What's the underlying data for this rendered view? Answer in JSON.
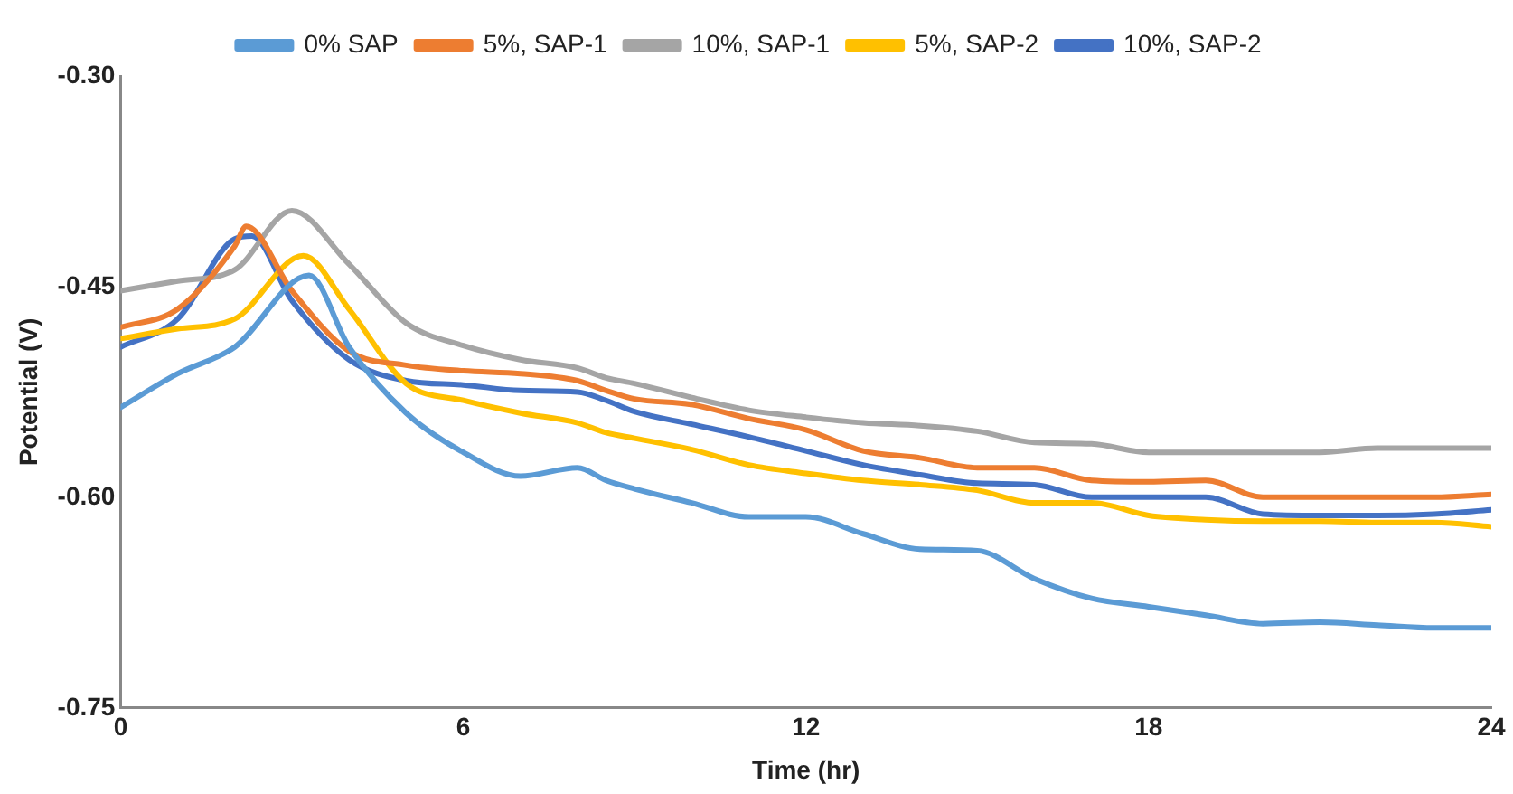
{
  "chart_data": {
    "type": "line",
    "xlabel": "Time (hr)",
    "ylabel": "Potential (V)",
    "xlim": [
      0,
      24
    ],
    "xticks": [
      0,
      6,
      12,
      18,
      24
    ],
    "ylim": [
      -0.75,
      -0.3
    ],
    "yticks": [
      {
        "value": -0.75,
        "label": "-0.75"
      },
      {
        "value": -0.6,
        "label": "-0.60"
      },
      {
        "value": -0.45,
        "label": "-0.45"
      },
      {
        "value": -0.3,
        "label": "-0.30"
      }
    ],
    "grid": false,
    "legend": "top",
    "line_style": "solid",
    "series": [
      {
        "name": "0% SAP",
        "color": "#5b9bd5",
        "x": [
          0,
          1,
          2,
          3.3,
          4,
          5,
          6,
          7,
          8,
          8.5,
          9,
          10,
          11,
          12,
          13,
          14,
          15,
          16,
          17,
          18,
          19,
          20,
          21,
          22,
          23,
          24
        ],
        "values": [
          -0.536,
          -0.512,
          -0.493,
          -0.442,
          -0.493,
          -0.54,
          -0.568,
          -0.585,
          -0.579,
          -0.588,
          -0.594,
          -0.604,
          -0.614,
          -0.614,
          -0.626,
          -0.637,
          -0.638,
          -0.658,
          -0.672,
          -0.678,
          -0.684,
          -0.69,
          -0.689,
          -0.691,
          -0.693,
          -0.693
        ]
      },
      {
        "name": "5%, SAP-1",
        "color": "#ed7d31",
        "x": [
          0,
          1,
          2,
          2.2,
          3,
          4,
          5,
          6,
          7,
          8,
          8.5,
          9,
          10,
          11,
          12,
          13,
          14,
          15,
          16,
          17,
          18,
          19,
          20,
          21,
          22,
          23,
          24
        ],
        "values": [
          -0.479,
          -0.466,
          -0.421,
          -0.407,
          -0.453,
          -0.496,
          -0.506,
          -0.51,
          -0.512,
          -0.517,
          -0.524,
          -0.53,
          -0.534,
          -0.544,
          -0.552,
          -0.567,
          -0.572,
          -0.579,
          -0.579,
          -0.588,
          -0.589,
          -0.588,
          -0.6,
          -0.6,
          -0.6,
          -0.6,
          -0.598
        ]
      },
      {
        "name": "10%, SAP-1",
        "color": "#a5a5a5",
        "x": [
          0,
          1,
          2,
          3,
          4,
          5,
          6,
          7,
          8,
          8.5,
          9,
          10,
          11,
          12,
          13,
          14,
          15,
          16,
          17,
          18,
          19,
          20,
          21,
          22,
          23,
          24
        ],
        "values": [
          -0.453,
          -0.446,
          -0.438,
          -0.396,
          -0.434,
          -0.476,
          -0.492,
          -0.502,
          -0.508,
          -0.515,
          -0.519,
          -0.529,
          -0.538,
          -0.543,
          -0.547,
          -0.549,
          -0.553,
          -0.561,
          -0.562,
          -0.568,
          -0.568,
          -0.568,
          -0.568,
          -0.565,
          -0.565,
          -0.565
        ]
      },
      {
        "name": "5%, SAP-2",
        "color": "#ffc000",
        "x": [
          0,
          1,
          2,
          3.2,
          4,
          5,
          6,
          7,
          8,
          8.5,
          9,
          10,
          11,
          12,
          13,
          14,
          15,
          16,
          17,
          18,
          19,
          20,
          21,
          22,
          23,
          24
        ],
        "values": [
          -0.487,
          -0.48,
          -0.473,
          -0.428,
          -0.466,
          -0.519,
          -0.531,
          -0.54,
          -0.547,
          -0.554,
          -0.558,
          -0.566,
          -0.577,
          -0.583,
          -0.588,
          -0.591,
          -0.595,
          -0.604,
          -0.604,
          -0.613,
          -0.616,
          -0.617,
          -0.617,
          -0.618,
          -0.618,
          -0.621
        ]
      },
      {
        "name": "10%, SAP-2",
        "color": "#4472c4",
        "x": [
          0,
          1,
          2,
          2.3,
          3,
          4,
          5,
          6,
          7,
          8,
          8.5,
          9,
          10,
          11,
          12,
          13,
          14,
          15,
          16,
          17,
          18,
          19,
          20,
          21,
          22,
          23,
          24
        ],
        "values": [
          -0.493,
          -0.473,
          -0.416,
          -0.414,
          -0.46,
          -0.502,
          -0.517,
          -0.52,
          -0.524,
          -0.525,
          -0.531,
          -0.539,
          -0.548,
          -0.557,
          -0.567,
          -0.577,
          -0.584,
          -0.59,
          -0.591,
          -0.6,
          -0.6,
          -0.6,
          -0.612,
          -0.613,
          -0.613,
          -0.612,
          -0.609
        ]
      }
    ]
  }
}
